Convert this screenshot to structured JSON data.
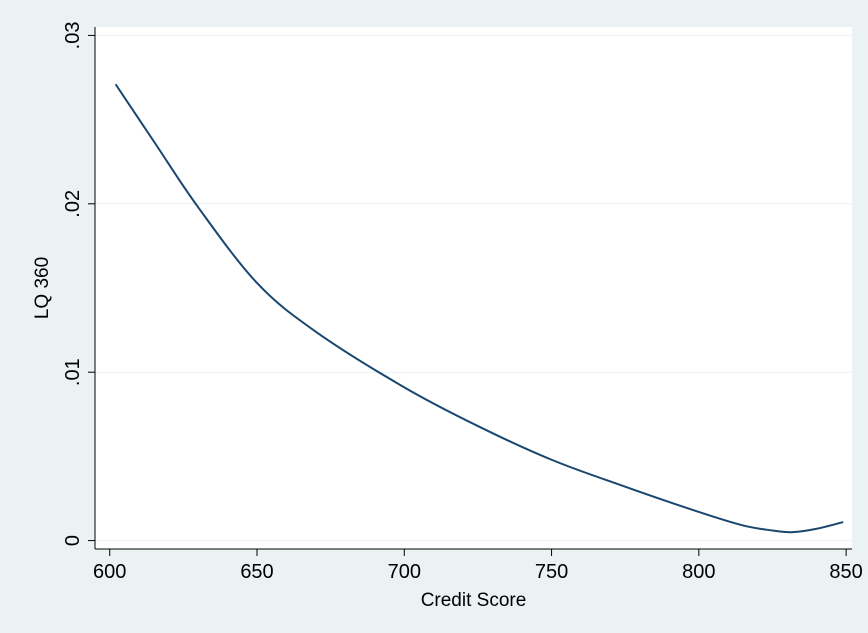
{
  "chart_data": {
    "type": "line",
    "title": "",
    "xlabel": "Credit Score",
    "ylabel": "LQ 360",
    "xlim": [
      595,
      852
    ],
    "ylim": [
      -0.0005,
      0.0305
    ],
    "xticks": [
      600,
      650,
      700,
      750,
      800,
      850
    ],
    "xtick_labels": [
      "600",
      "650",
      "700",
      "750",
      "800",
      "850"
    ],
    "yticks": [
      0,
      0.01,
      0.02,
      0.03
    ],
    "ytick_labels": [
      "0",
      ".01",
      ".02",
      ".03"
    ],
    "grid": "horizontal",
    "legend": "none",
    "colors": {
      "line": "#1a476f",
      "plot_bg": "#ffffff",
      "outer_bg": "#eaf2f3",
      "grid": "#eaf2f3"
    },
    "series": [
      {
        "x": [
          602,
          615,
          630,
          650,
          670,
          700,
          725,
          750,
          775,
          800,
          815,
          825,
          832,
          840,
          849
        ],
        "y": [
          0.0271,
          0.0237,
          0.0198,
          0.0153,
          0.0124,
          0.0091,
          0.0068,
          0.0048,
          0.0032,
          0.0017,
          0.0009,
          0.0006,
          0.0005,
          0.0007,
          0.0011
        ]
      }
    ]
  }
}
